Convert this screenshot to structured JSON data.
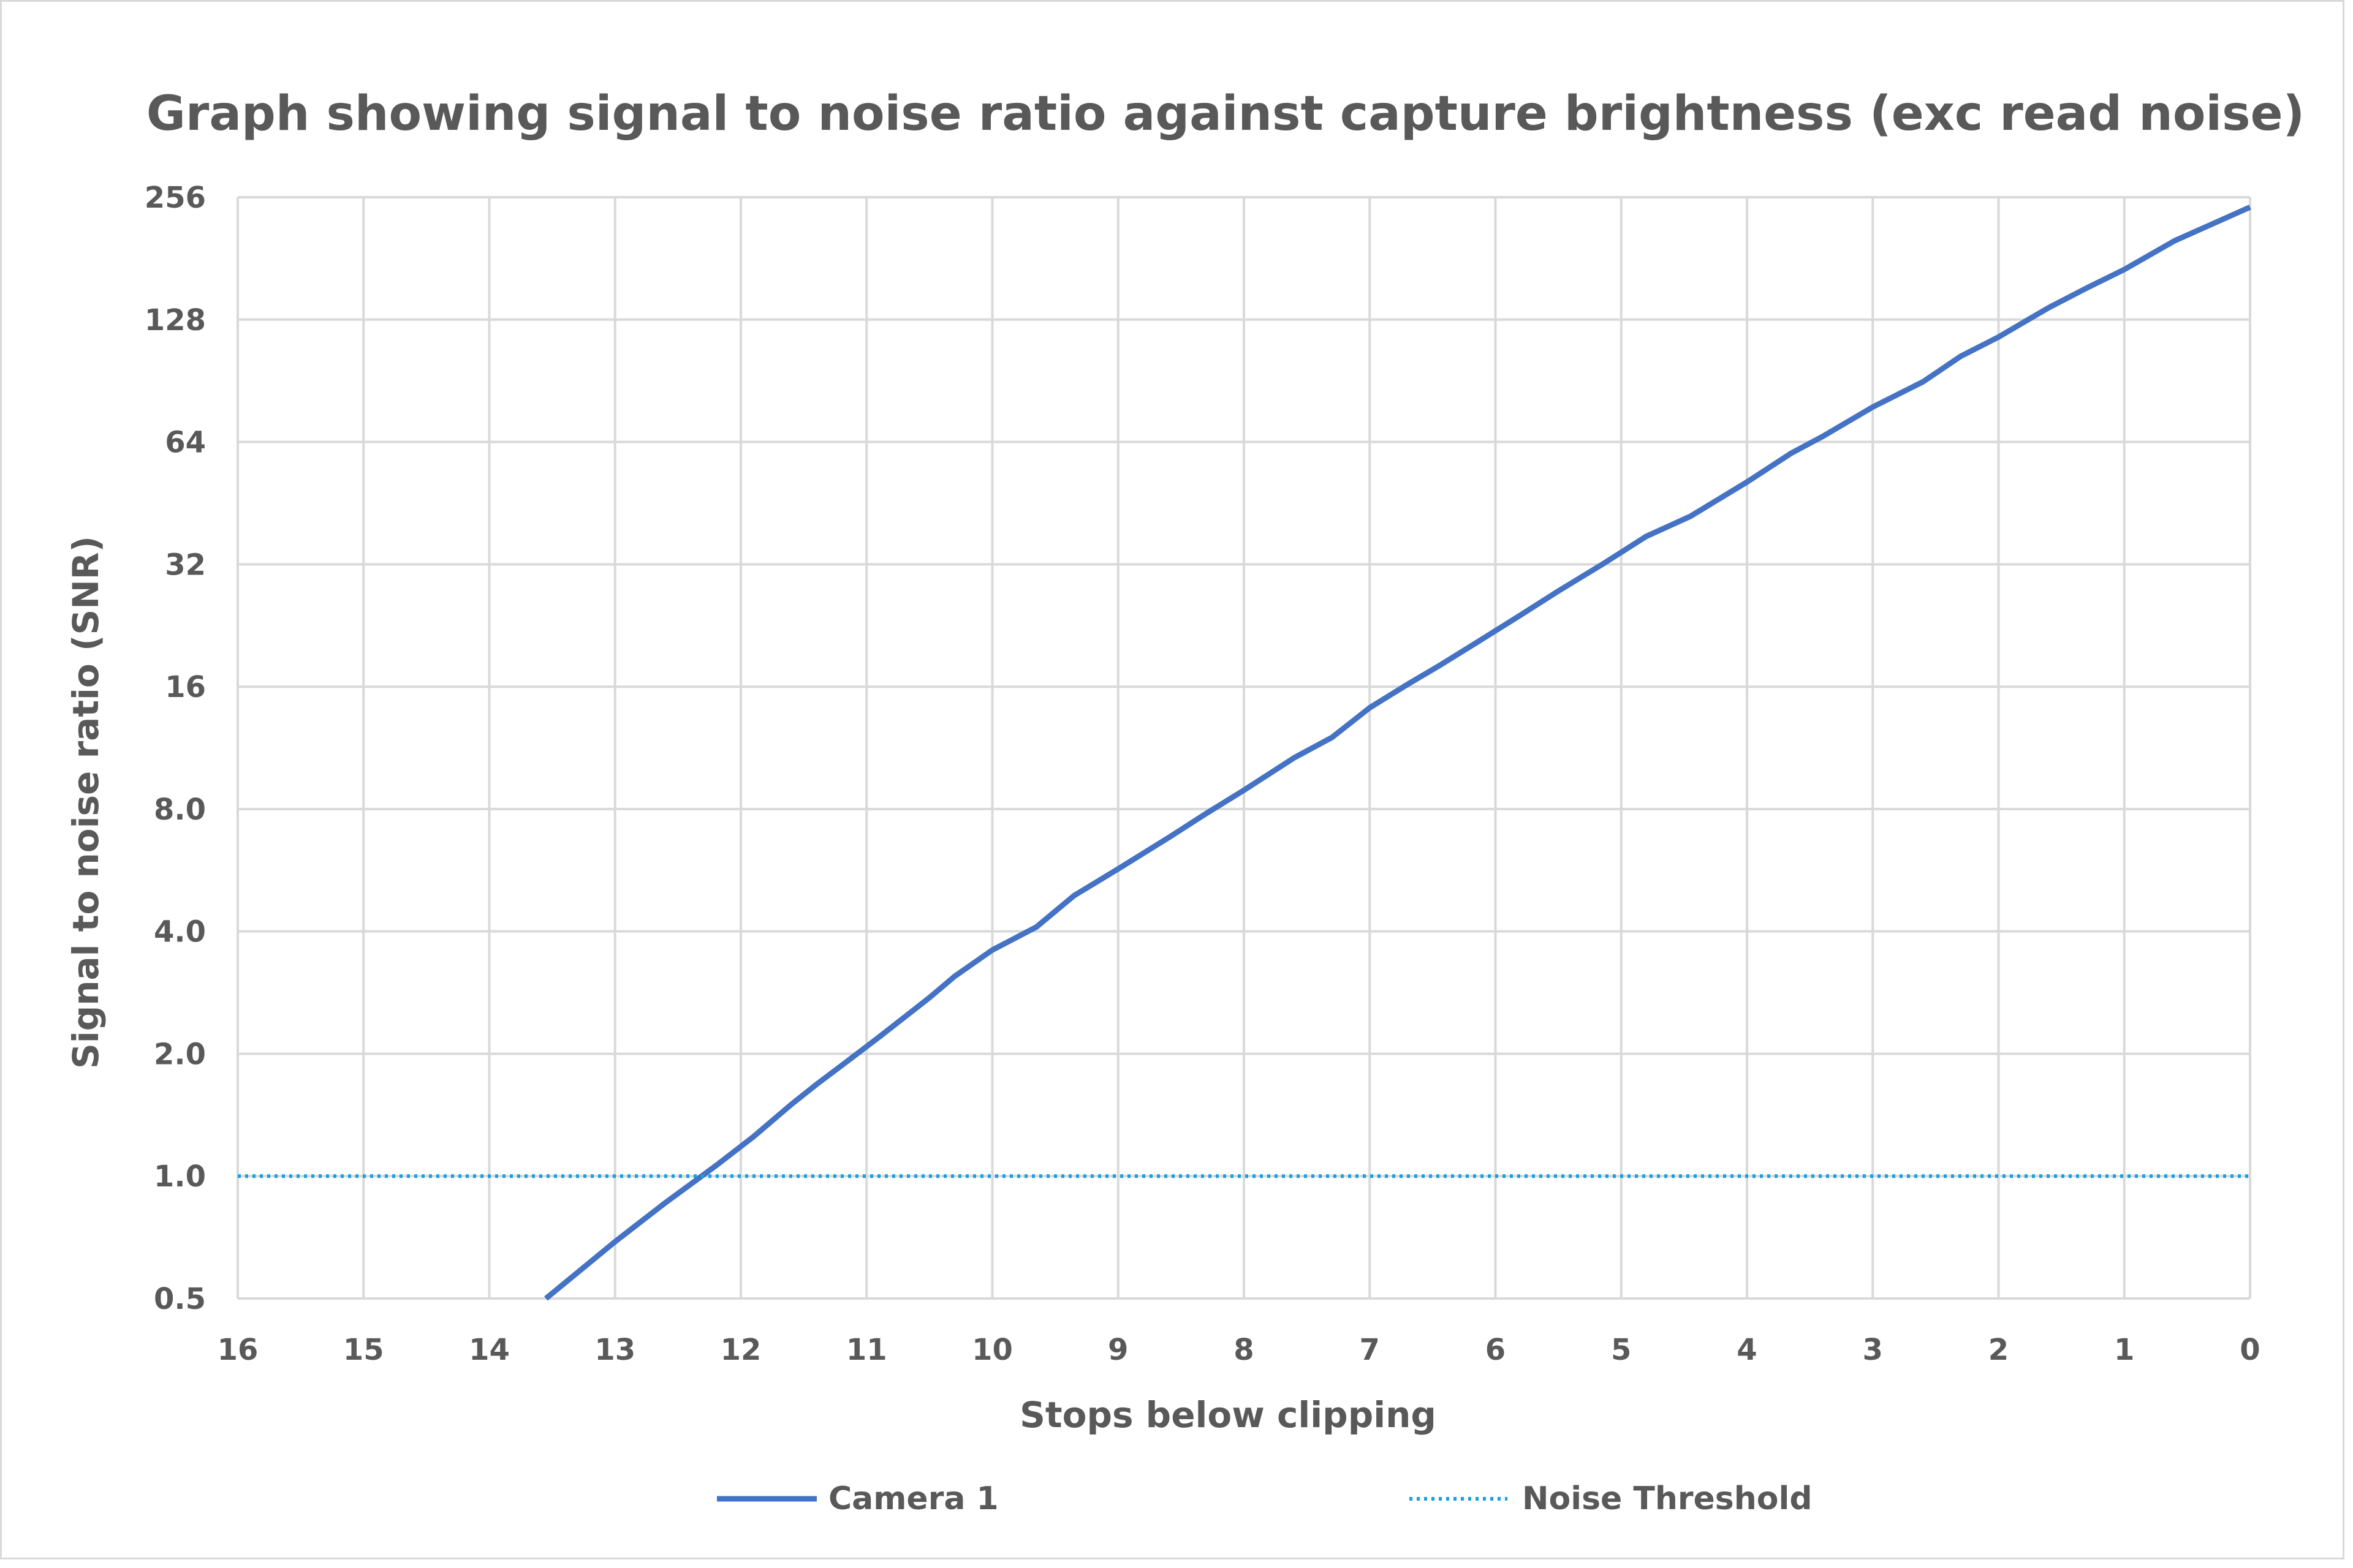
{
  "chart_data": {
    "type": "line",
    "title": "Graph showing signal to noise ratio against capture brightness (exc read noise)",
    "xlabel": "Stops below clipping",
    "ylabel": "Signal to noise ratio (SNR)",
    "x_reversed": true,
    "xlim": [
      16,
      0
    ],
    "ylim": [
      0.5,
      256
    ],
    "y_scale": "log2",
    "grid": true,
    "legend_position": "bottom",
    "x_ticks": [
      "16",
      "15",
      "14",
      "13",
      "12",
      "11",
      "10",
      "9",
      "8",
      "7",
      "6",
      "5",
      "4",
      "3",
      "2",
      "1",
      "0"
    ],
    "y_ticks": [
      "0.5",
      "1.0",
      "2.0",
      "4.0",
      "8.0",
      "16",
      "32",
      "64",
      "128",
      "256"
    ],
    "series": [
      {
        "name": "Camera 1",
        "color": "#4472c4",
        "style": "solid",
        "x": [
          13.55,
          13.0,
          12.6,
          12.2,
          11.9,
          11.6,
          11.4,
          11.2,
          10.9,
          10.6,
          10.5,
          10.3,
          10.0,
          9.65,
          9.35,
          9.0,
          8.6,
          8.3,
          8.0,
          7.6,
          7.3,
          7.0,
          6.7,
          6.45,
          6.1,
          5.8,
          5.5,
          5.15,
          4.8,
          4.45,
          4.0,
          3.65,
          3.4,
          3.0,
          2.6,
          2.3,
          2.0,
          1.6,
          1.3,
          1.0,
          0.6,
          0.3,
          0.0
        ],
        "y": [
          0.5,
          0.69,
          0.86,
          1.06,
          1.25,
          1.5,
          1.68,
          1.87,
          2.2,
          2.6,
          2.75,
          3.1,
          3.6,
          4.1,
          4.9,
          5.7,
          6.8,
          7.8,
          8.9,
          10.7,
          12.0,
          14.2,
          16.2,
          18.0,
          21.0,
          24.0,
          27.5,
          32.0,
          37.5,
          42.0,
          51.0,
          60.0,
          66.0,
          78.0,
          90.0,
          104.0,
          116.0,
          137.0,
          153.0,
          170.0,
          200.0,
          220.0,
          242.0
        ]
      },
      {
        "name": "Noise Threshold",
        "color": "#1aa1dd",
        "style": "dotted",
        "x": [
          16,
          0
        ],
        "y": [
          1.0,
          1.0
        ]
      }
    ]
  }
}
